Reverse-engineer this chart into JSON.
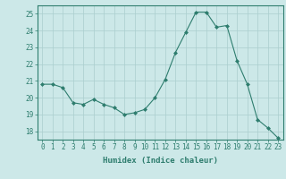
{
  "x": [
    0,
    1,
    2,
    3,
    4,
    5,
    6,
    7,
    8,
    9,
    10,
    11,
    12,
    13,
    14,
    15,
    16,
    17,
    18,
    19,
    20,
    21,
    22,
    23
  ],
  "y": [
    20.8,
    20.8,
    20.6,
    19.7,
    19.6,
    19.9,
    19.6,
    19.4,
    19.0,
    19.1,
    19.3,
    20.0,
    21.1,
    22.7,
    23.9,
    25.1,
    25.1,
    24.2,
    24.3,
    22.2,
    20.8,
    18.7,
    18.2,
    17.6
  ],
  "xlabel": "Humidex (Indice chaleur)",
  "xlim": [
    -0.5,
    23.5
  ],
  "ylim": [
    17.5,
    25.5
  ],
  "yticks": [
    18,
    19,
    20,
    21,
    22,
    23,
    24,
    25
  ],
  "xticks": [
    0,
    1,
    2,
    3,
    4,
    5,
    6,
    7,
    8,
    9,
    10,
    11,
    12,
    13,
    14,
    15,
    16,
    17,
    18,
    19,
    20,
    21,
    22,
    23
  ],
  "line_color": "#2e7d6e",
  "marker": "D",
  "marker_size": 2.0,
  "bg_color": "#cce8e8",
  "grid_color": "#aacece",
  "axis_color": "#2e7d6e",
  "tick_color": "#2e7d6e",
  "label_color": "#2e7d6e",
  "tick_fontsize": 5.5,
  "xlabel_fontsize": 6.5
}
